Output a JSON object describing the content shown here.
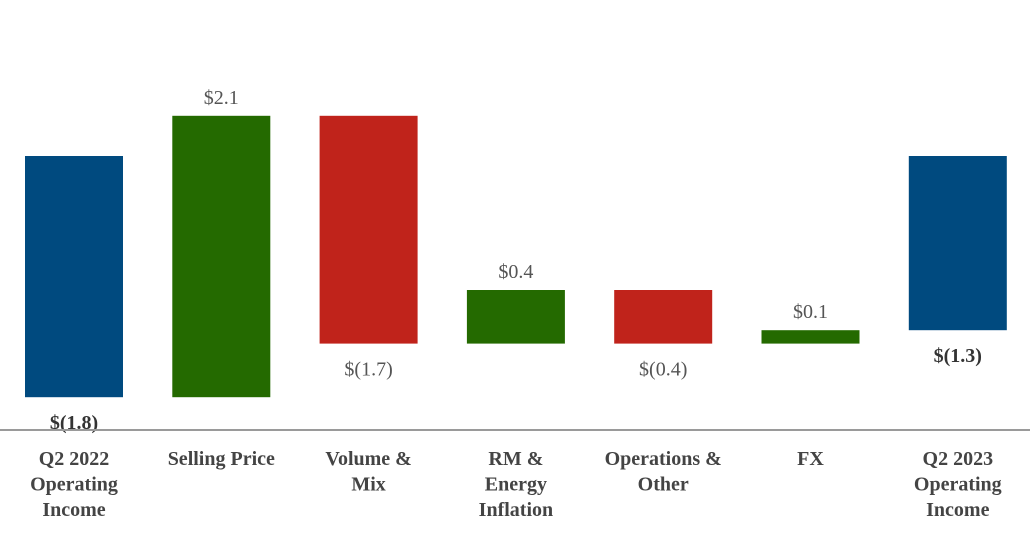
{
  "chart_data": {
    "type": "bar",
    "subtype": "waterfall",
    "title": "",
    "xlabel": "",
    "ylabel": "",
    "grid": false,
    "legend": "none",
    "categories": [
      {
        "lines": [
          "Q2 2022",
          "Operating",
          "Income"
        ]
      },
      {
        "lines": [
          "Selling Price"
        ]
      },
      {
        "lines": [
          "Volume &",
          "Mix"
        ]
      },
      {
        "lines": [
          "RM &",
          "Energy",
          "Inflation"
        ]
      },
      {
        "lines": [
          "Operations &",
          "Other"
        ]
      },
      {
        "lines": [
          "FX"
        ]
      },
      {
        "lines": [
          "Q2 2023",
          "Operating",
          "Income"
        ]
      }
    ],
    "bars": [
      {
        "kind": "total",
        "value": -1.8,
        "start": 0,
        "end": -1.8,
        "label": "$(1.8)",
        "color": "#004a7f"
      },
      {
        "kind": "increase",
        "value": 2.1,
        "start": -1.8,
        "end": 0.3,
        "label": "$2.1",
        "color": "#246a00"
      },
      {
        "kind": "decrease",
        "value": -1.7,
        "start": 0.3,
        "end": -1.4,
        "label": "$(1.7)",
        "color": "#c0231b"
      },
      {
        "kind": "increase",
        "value": 0.4,
        "start": -1.4,
        "end": -1.0,
        "label": "$0.4",
        "color": "#246a00"
      },
      {
        "kind": "decrease",
        "value": -0.4,
        "start": -1.0,
        "end": -1.4,
        "label": "$(0.4)",
        "color": "#c0231b"
      },
      {
        "kind": "increase",
        "value": 0.1,
        "start": -1.4,
        "end": -1.3,
        "label": "$0.1",
        "color": "#246a00"
      },
      {
        "kind": "total",
        "value": -1.3,
        "start": 0,
        "end": -1.3,
        "label": "$(1.3)",
        "color": "#004a7f"
      }
    ]
  }
}
